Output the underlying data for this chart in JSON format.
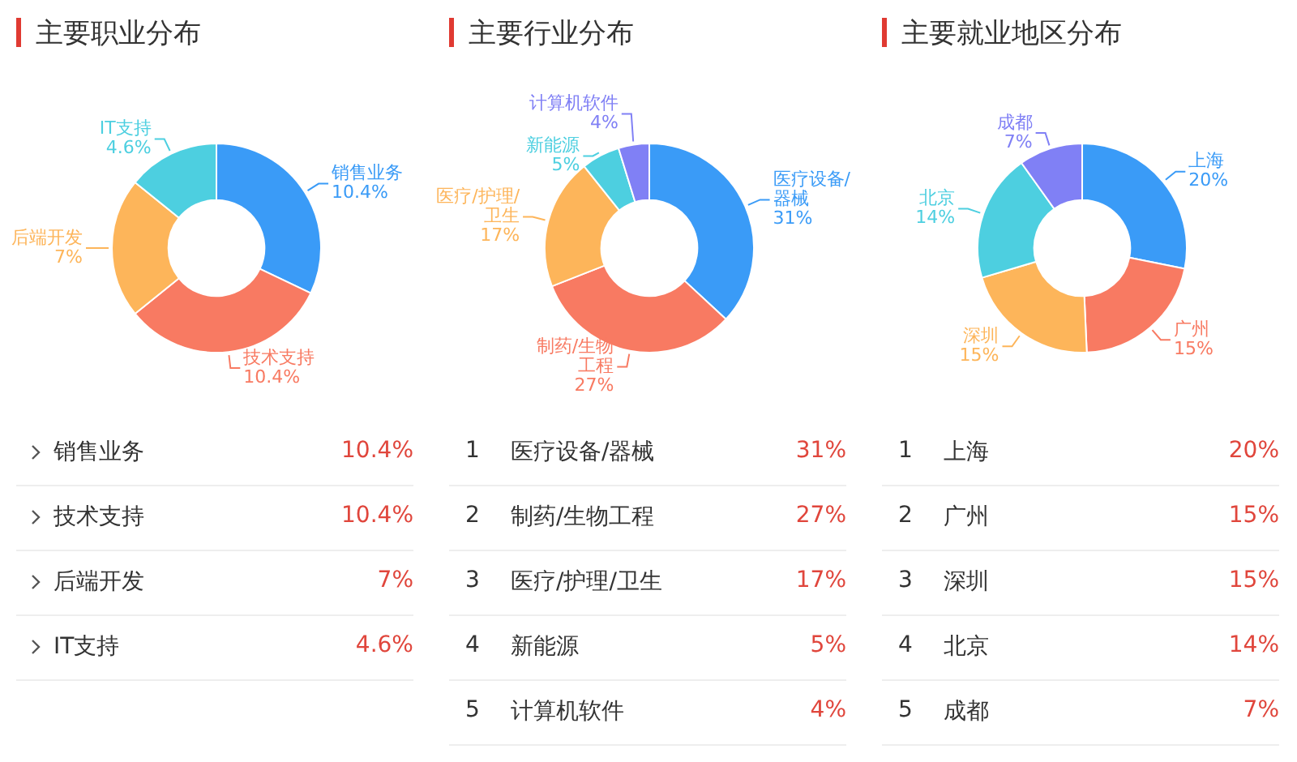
{
  "chart_data": [
    {
      "type": "donut",
      "title": "主要职业分布",
      "categories": [
        "销售业务",
        "技术支持",
        "后端开发",
        "IT支持"
      ],
      "values": [
        10.4,
        10.4,
        7,
        4.6
      ],
      "value_labels": [
        "10.4%",
        "10.4%",
        "7%",
        "4.6%"
      ],
      "colors": [
        "#3a9bf7",
        "#f87a62",
        "#fdb55a",
        "#4dcfe0"
      ],
      "legend": false
    },
    {
      "type": "donut",
      "title": "主要行业分布",
      "categories": [
        "医疗设备/器械",
        "制药/生物工程",
        "医疗/护理/卫生",
        "新能源",
        "计算机软件"
      ],
      "values": [
        31,
        27,
        17,
        5,
        4
      ],
      "value_labels": [
        "31%",
        "27%",
        "17%",
        "5%",
        "4%"
      ],
      "colors": [
        "#3a9bf7",
        "#f87a62",
        "#fdb55a",
        "#4dcfe0",
        "#8080f5"
      ],
      "legend": false,
      "annotations": [
        "1",
        "2",
        "3",
        "4",
        "5"
      ]
    },
    {
      "type": "donut",
      "title": "主要就业地区分布",
      "categories": [
        "上海",
        "广州",
        "深圳",
        "北京",
        "成都"
      ],
      "values": [
        20,
        15,
        15,
        14,
        7
      ],
      "value_labels": [
        "20%",
        "15%",
        "15%",
        "14%",
        "7%"
      ],
      "colors": [
        "#3a9bf7",
        "#f87a62",
        "#fdb55a",
        "#4dcfe0",
        "#8080f5"
      ],
      "legend": false,
      "annotations": [
        "1",
        "2",
        "3",
        "4",
        "5"
      ]
    }
  ]
}
